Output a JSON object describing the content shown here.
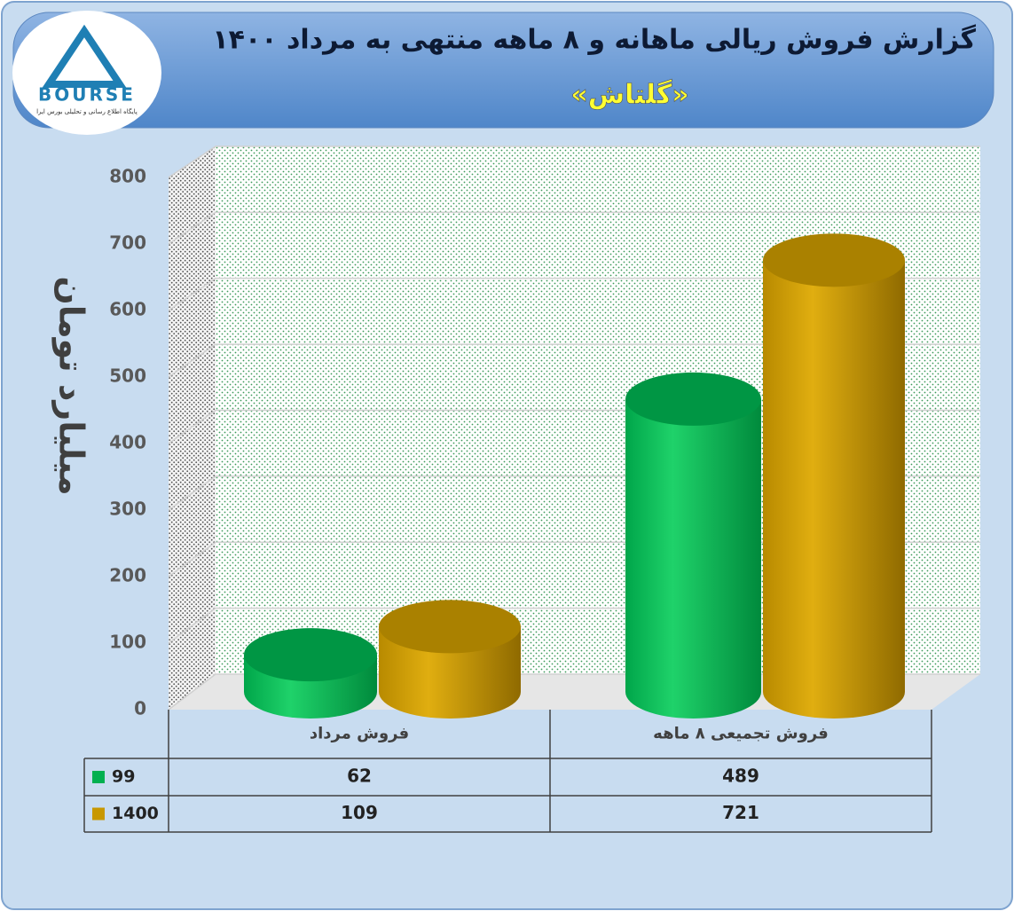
{
  "logo": {
    "name": "BOURSE",
    "tagline": "پایگاه اطلاع رسانی و تحلیلی بورس ایرا"
  },
  "chart_data": {
    "type": "cylinder",
    "title": "گزارش فروش ریالی ماهانه و ۸ ماهه منتهی به مرداد ۱۴۰۰",
    "subtitle": "«گلتاش»",
    "y_label": "میلیارد تومان",
    "categories": [
      "فروش مرداد",
      "فروش تجمیعی ۸  ماهه"
    ],
    "series": [
      {
        "name": "99",
        "color": "#00b050",
        "values": [
          62,
          489
        ]
      },
      {
        "name": "1400",
        "color": "#c89800",
        "values": [
          109,
          721
        ]
      }
    ],
    "ylim": [
      0,
      800
    ],
    "yticks": [
      0,
      100,
      200,
      300,
      400,
      500,
      600,
      700,
      800
    ],
    "grid": true
  }
}
